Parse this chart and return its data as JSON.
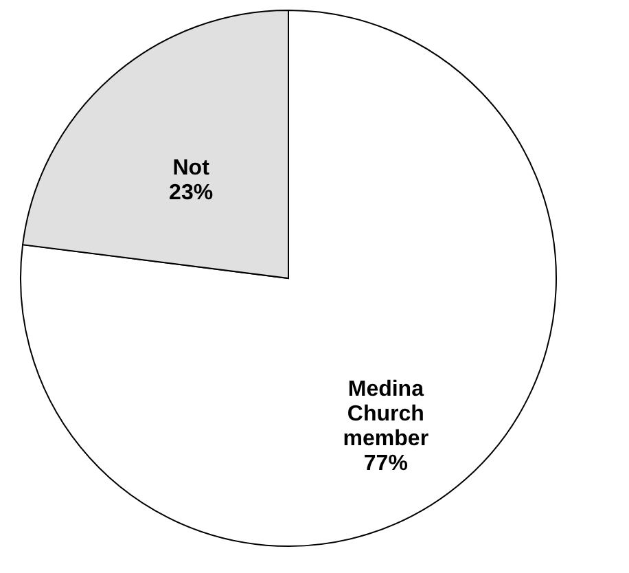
{
  "chart_data": {
    "type": "pie",
    "categories": [
      "Medina Church member",
      "Not"
    ],
    "values": [
      77,
      23
    ],
    "colors": [
      "#ffffff",
      "#e0e0e0"
    ],
    "value_labels": [
      "77%",
      "23%"
    ],
    "data_labels": true
  }
}
